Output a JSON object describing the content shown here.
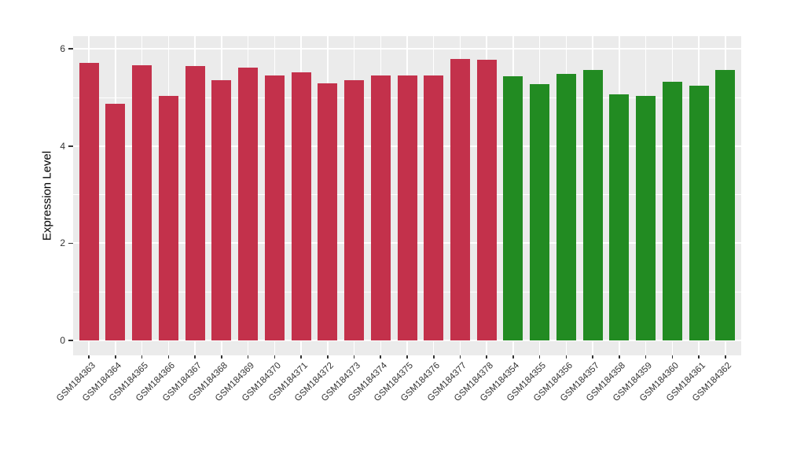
{
  "chart_data": {
    "type": "bar",
    "title": "",
    "xlabel": "",
    "ylabel": "Expression Level",
    "categories": [
      "GSM184363",
      "GSM184364",
      "GSM184365",
      "GSM184366",
      "GSM184367",
      "GSM184368",
      "GSM184369",
      "GSM184370",
      "GSM184371",
      "GSM184372",
      "GSM184373",
      "GSM184374",
      "GSM184375",
      "GSM184376",
      "GSM184377",
      "GSM184378",
      "GSM184354",
      "GSM184355",
      "GSM184356",
      "GSM184357",
      "GSM184358",
      "GSM184359",
      "GSM184360",
      "GSM184361",
      "GSM184362"
    ],
    "values": [
      5.72,
      4.87,
      5.67,
      5.03,
      5.64,
      5.35,
      5.61,
      5.45,
      5.51,
      5.29,
      5.35,
      5.45,
      5.45,
      5.46,
      5.79,
      5.78,
      5.44,
      5.27,
      5.48,
      5.57,
      5.06,
      5.03,
      5.32,
      5.24,
      5.57
    ],
    "bar_groups": [
      "red",
      "red",
      "red",
      "red",
      "red",
      "red",
      "red",
      "red",
      "red",
      "red",
      "red",
      "red",
      "red",
      "red",
      "red",
      "red",
      "green",
      "green",
      "green",
      "green",
      "green",
      "green",
      "green",
      "green",
      "green"
    ],
    "group_colors": {
      "red": "#C3314B",
      "green": "#228B22"
    },
    "y_ticks": [
      0,
      2,
      4,
      6
    ],
    "y_tick_labels": [
      "0",
      "2",
      "4",
      "6"
    ],
    "y_minor_ticks": [
      1,
      3,
      5
    ],
    "ylim": [
      0,
      6
    ],
    "grid": true,
    "legend": "none",
    "panel_background": "#EBEBEB",
    "gridline_color": "#FFFFFF",
    "axis_text_color": "#333333"
  }
}
